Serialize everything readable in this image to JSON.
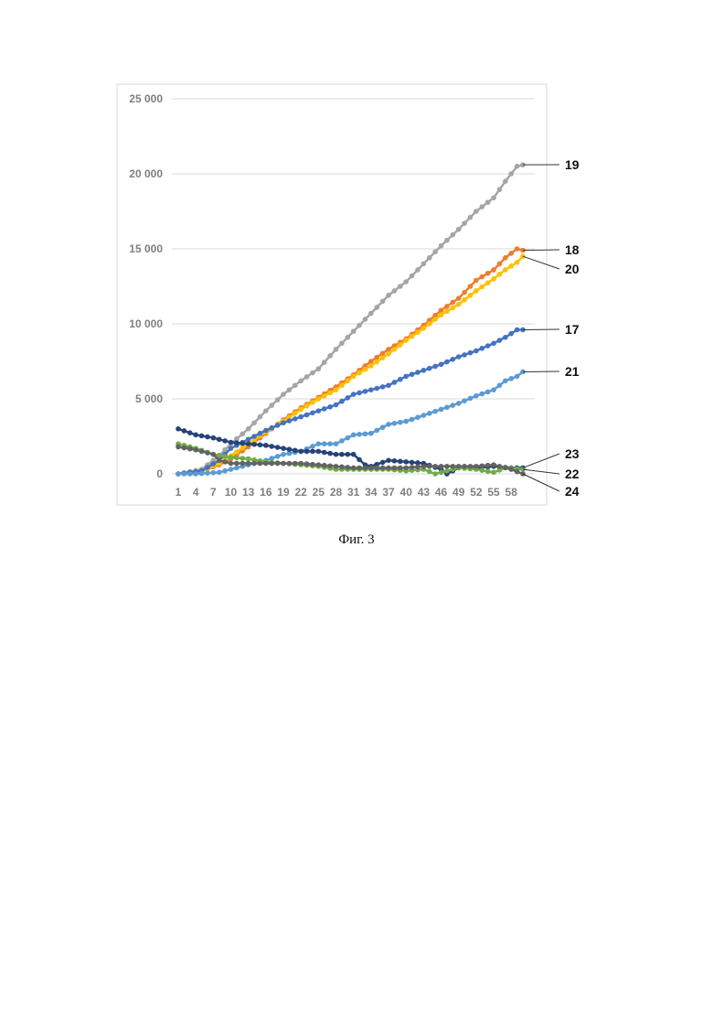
{
  "caption": "Фиг. 3",
  "chart_data": {
    "type": "line",
    "title": "",
    "xlabel": "",
    "ylabel": "",
    "ylim": [
      0,
      25000
    ],
    "yticks": [
      0,
      5000,
      10000,
      15000,
      20000,
      25000
    ],
    "ytick_labels": [
      "0",
      "5 000",
      "10 000",
      "15 000",
      "20 000",
      "25 000"
    ],
    "x": [
      1,
      60
    ],
    "xtick_labels": [
      "1",
      "4",
      "7",
      "10",
      "13",
      "16",
      "19",
      "22",
      "25",
      "28",
      "31",
      "34",
      "37",
      "40",
      "43",
      "46",
      "49",
      "52",
      "55",
      "58"
    ],
    "grid": "horizontal",
    "series": [
      {
        "name": "19",
        "color": "#a5a5a5",
        "points": [
          [
            1,
            0
          ],
          [
            5,
            300
          ],
          [
            8,
            1200
          ],
          [
            10,
            2000
          ],
          [
            13,
            3000
          ],
          [
            16,
            4200
          ],
          [
            19,
            5300
          ],
          [
            22,
            6200
          ],
          [
            25,
            7000
          ],
          [
            28,
            8300
          ],
          [
            31,
            9500
          ],
          [
            34,
            10700
          ],
          [
            37,
            11900
          ],
          [
            40,
            12800
          ],
          [
            43,
            14000
          ],
          [
            46,
            15200
          ],
          [
            49,
            16300
          ],
          [
            52,
            17500
          ],
          [
            55,
            18400
          ],
          [
            57,
            19500
          ],
          [
            59,
            20500
          ],
          [
            60,
            20600
          ]
        ]
      },
      {
        "name": "18",
        "color": "#ed7d31",
        "points": [
          [
            1,
            0
          ],
          [
            5,
            200
          ],
          [
            8,
            600
          ],
          [
            10,
            1000
          ],
          [
            13,
            1800
          ],
          [
            16,
            2700
          ],
          [
            19,
            3600
          ],
          [
            22,
            4400
          ],
          [
            25,
            5100
          ],
          [
            28,
            5800
          ],
          [
            31,
            6600
          ],
          [
            34,
            7500
          ],
          [
            37,
            8300
          ],
          [
            40,
            9000
          ],
          [
            43,
            9900
          ],
          [
            46,
            10900
          ],
          [
            49,
            11700
          ],
          [
            52,
            12900
          ],
          [
            55,
            13600
          ],
          [
            57,
            14400
          ],
          [
            59,
            15000
          ],
          [
            60,
            14900
          ]
        ]
      },
      {
        "name": "20",
        "color": "#ffc000",
        "points": [
          [
            1,
            0
          ],
          [
            5,
            200
          ],
          [
            8,
            700
          ],
          [
            10,
            1200
          ],
          [
            13,
            2000
          ],
          [
            16,
            2800
          ],
          [
            19,
            3500
          ],
          [
            22,
            4300
          ],
          [
            25,
            5000
          ],
          [
            28,
            5600
          ],
          [
            31,
            6500
          ],
          [
            34,
            7200
          ],
          [
            37,
            8000
          ],
          [
            40,
            8900
          ],
          [
            43,
            9700
          ],
          [
            46,
            10600
          ],
          [
            49,
            11300
          ],
          [
            52,
            12200
          ],
          [
            55,
            13000
          ],
          [
            57,
            13600
          ],
          [
            59,
            14100
          ],
          [
            60,
            14500
          ]
        ]
      },
      {
        "name": "17",
        "color": "#4472c4",
        "points": [
          [
            1,
            0
          ],
          [
            5,
            200
          ],
          [
            8,
            900
          ],
          [
            10,
            1700
          ],
          [
            13,
            2300
          ],
          [
            16,
            2900
          ],
          [
            19,
            3400
          ],
          [
            22,
            3800
          ],
          [
            25,
            4200
          ],
          [
            28,
            4600
          ],
          [
            31,
            5300
          ],
          [
            34,
            5600
          ],
          [
            37,
            5900
          ],
          [
            40,
            6500
          ],
          [
            43,
            6900
          ],
          [
            46,
            7300
          ],
          [
            49,
            7800
          ],
          [
            52,
            8200
          ],
          [
            55,
            8700
          ],
          [
            57,
            9100
          ],
          [
            59,
            9600
          ],
          [
            60,
            9600
          ]
        ]
      },
      {
        "name": "21",
        "color": "#5b9bd5",
        "points": [
          [
            1,
            0
          ],
          [
            4,
            0
          ],
          [
            8,
            100
          ],
          [
            10,
            300
          ],
          [
            13,
            600
          ],
          [
            16,
            900
          ],
          [
            19,
            1300
          ],
          [
            22,
            1500
          ],
          [
            25,
            2000
          ],
          [
            28,
            2000
          ],
          [
            31,
            2600
          ],
          [
            34,
            2700
          ],
          [
            37,
            3300
          ],
          [
            40,
            3500
          ],
          [
            43,
            3900
          ],
          [
            46,
            4300
          ],
          [
            49,
            4700
          ],
          [
            52,
            5200
          ],
          [
            55,
            5600
          ],
          [
            57,
            6200
          ],
          [
            59,
            6500
          ],
          [
            60,
            6800
          ]
        ]
      },
      {
        "name": "23",
        "color": "#264478",
        "points": [
          [
            1,
            3000
          ],
          [
            4,
            2600
          ],
          [
            7,
            2400
          ],
          [
            10,
            2100
          ],
          [
            13,
            2000
          ],
          [
            16,
            1900
          ],
          [
            19,
            1700
          ],
          [
            22,
            1500
          ],
          [
            25,
            1500
          ],
          [
            28,
            1300
          ],
          [
            31,
            1300
          ],
          [
            33,
            600
          ],
          [
            34,
            500
          ],
          [
            37,
            900
          ],
          [
            40,
            800
          ],
          [
            43,
            700
          ],
          [
            46,
            300
          ],
          [
            47,
            0
          ],
          [
            49,
            400
          ],
          [
            52,
            400
          ],
          [
            55,
            500
          ],
          [
            58,
            400
          ],
          [
            60,
            400
          ]
        ]
      },
      {
        "name": "22",
        "color": "#70ad47",
        "points": [
          [
            1,
            2000
          ],
          [
            4,
            1700
          ],
          [
            7,
            1300
          ],
          [
            10,
            1100
          ],
          [
            13,
            1000
          ],
          [
            16,
            800
          ],
          [
            19,
            700
          ],
          [
            22,
            600
          ],
          [
            25,
            500
          ],
          [
            28,
            300
          ],
          [
            31,
            300
          ],
          [
            34,
            300
          ],
          [
            37,
            300
          ],
          [
            40,
            200
          ],
          [
            43,
            300
          ],
          [
            45,
            0
          ],
          [
            47,
            200
          ],
          [
            49,
            400
          ],
          [
            52,
            300
          ],
          [
            55,
            100
          ],
          [
            57,
            400
          ],
          [
            60,
            300
          ]
        ]
      },
      {
        "name": "24",
        "color": "#636363",
        "points": [
          [
            1,
            1800
          ],
          [
            4,
            1600
          ],
          [
            7,
            1300
          ],
          [
            8,
            900
          ],
          [
            10,
            700
          ],
          [
            13,
            700
          ],
          [
            16,
            700
          ],
          [
            19,
            700
          ],
          [
            22,
            700
          ],
          [
            25,
            600
          ],
          [
            28,
            500
          ],
          [
            31,
            400
          ],
          [
            34,
            400
          ],
          [
            37,
            400
          ],
          [
            40,
            400
          ],
          [
            43,
            500
          ],
          [
            46,
            500
          ],
          [
            49,
            500
          ],
          [
            52,
            500
          ],
          [
            55,
            600
          ],
          [
            58,
            300
          ],
          [
            60,
            0
          ]
        ]
      }
    ]
  }
}
